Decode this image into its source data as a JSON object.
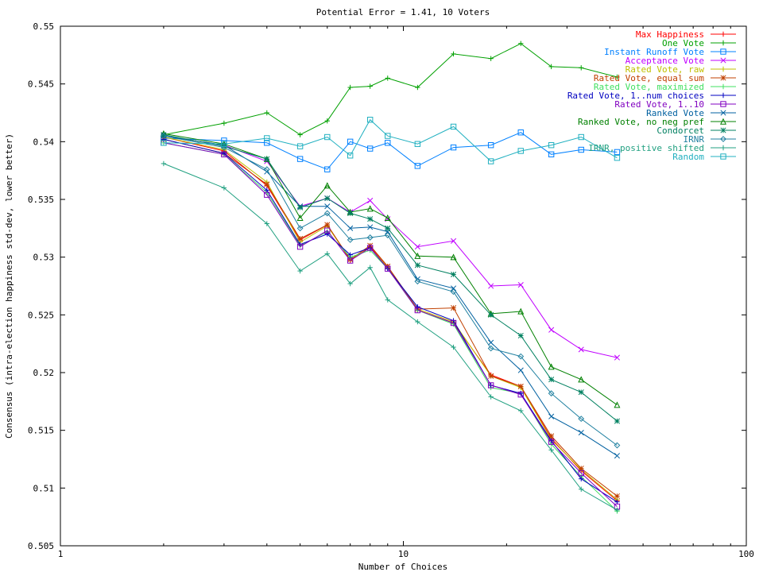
{
  "chart_data": {
    "type": "line",
    "title": "Potential Error = 1.41, 10 Voters",
    "xlabel": "Number of Choices",
    "ylabel": "Consensus (intra-election happiness std-dev, lower better)",
    "x_scale": "log",
    "xlim": [
      1,
      100
    ],
    "ylim": [
      0.505,
      0.55
    ],
    "x_ticks": [
      1,
      10,
      100
    ],
    "x_tick_labels": [
      "1",
      "10",
      "100"
    ],
    "y_ticks": [
      0.505,
      0.51,
      0.515,
      0.52,
      0.525,
      0.53,
      0.535,
      0.54,
      0.545,
      0.55
    ],
    "y_tick_labels": [
      "0.505",
      "0.51",
      "0.515",
      "0.52",
      "0.525",
      "0.53",
      "0.535",
      "0.54",
      "0.545",
      "0.55"
    ],
    "legend_position": "top-right",
    "grid": false,
    "x": [
      2,
      3,
      4,
      5,
      6,
      7,
      8,
      9,
      11,
      14,
      18,
      22,
      27,
      33,
      42
    ],
    "series": [
      {
        "name": "Max Happiness",
        "color": "#ff0000",
        "marker": "plus",
        "values": [
          0.5404,
          0.5392,
          0.5362,
          0.5315,
          0.5328,
          0.5297,
          0.5309,
          0.5292,
          0.5254,
          0.5243,
          0.5198,
          0.5188,
          0.5143,
          0.5115,
          0.5089
        ]
      },
      {
        "name": "One Vote",
        "color": "#00a000",
        "marker": "plus",
        "values": [
          0.5406,
          0.5416,
          0.5425,
          0.5406,
          0.5418,
          0.5447,
          0.5448,
          0.5455,
          0.5447,
          0.5476,
          0.5472,
          0.5485,
          0.5465,
          0.5464,
          0.5456
        ]
      },
      {
        "name": "Instant Runoff Vote",
        "color": "#0080ff",
        "marker": "square",
        "values": [
          0.5403,
          0.5401,
          0.5399,
          0.5385,
          0.5376,
          0.54,
          0.5394,
          0.5399,
          0.5379,
          0.5395,
          0.5397,
          0.5408,
          0.5389,
          0.5393,
          0.5391
        ]
      },
      {
        "name": "Acceptance Vote",
        "color": "#c000ff",
        "marker": "x",
        "values": [
          0.5405,
          0.5397,
          0.5383,
          0.5344,
          0.5351,
          0.5339,
          0.5349,
          0.5333,
          0.5309,
          0.5314,
          0.5275,
          0.5276,
          0.5237,
          0.522,
          0.5213
        ]
      },
      {
        "name": "Rated Vote, raw",
        "color": "#c0c000",
        "marker": "plus",
        "values": [
          0.5404,
          0.5393,
          0.5365,
          0.5313,
          0.5327,
          0.5298,
          0.5308,
          0.5291,
          0.5255,
          0.5244,
          0.5197,
          0.5187,
          0.5142,
          0.5116,
          0.509
        ]
      },
      {
        "name": "Rated Vote, equal sum",
        "color": "#c04000",
        "marker": "star",
        "values": [
          0.5402,
          0.539,
          0.5363,
          0.5316,
          0.5328,
          0.5298,
          0.531,
          0.5292,
          0.5255,
          0.5256,
          0.5197,
          0.5188,
          0.5145,
          0.5117,
          0.5093
        ]
      },
      {
        "name": "Rated Vote, maximized",
        "color": "#40e060",
        "marker": "plus",
        "values": [
          0.5399,
          0.5389,
          0.5356,
          0.531,
          0.5322,
          0.53,
          0.5306,
          0.529,
          0.5254,
          0.5242,
          0.5187,
          0.5182,
          0.5138,
          0.511,
          0.508
        ]
      },
      {
        "name": "Rated Vote, 1..num choices",
        "color": "#0000c0",
        "marker": "plus",
        "values": [
          0.5402,
          0.539,
          0.5358,
          0.5311,
          0.532,
          0.5302,
          0.5308,
          0.529,
          0.5257,
          0.5245,
          0.5189,
          0.5182,
          0.5141,
          0.5108,
          0.5088
        ]
      },
      {
        "name": "Rated Vote, 1..10",
        "color": "#8000c0",
        "marker": "square",
        "values": [
          0.5399,
          0.5389,
          0.5354,
          0.5309,
          0.5323,
          0.5297,
          0.5308,
          0.529,
          0.5254,
          0.5243,
          0.5189,
          0.5181,
          0.514,
          0.5113,
          0.5084
        ]
      },
      {
        "name": "Ranked Vote",
        "color": "#0060a0",
        "marker": "x",
        "values": [
          0.5405,
          0.5397,
          0.5374,
          0.5344,
          0.5344,
          0.5325,
          0.5326,
          0.5322,
          0.5281,
          0.5273,
          0.5226,
          0.5202,
          0.5162,
          0.5148,
          0.5128
        ]
      },
      {
        "name": "Ranked Vote, no neg pref",
        "color": "#008000",
        "marker": "triangle",
        "values": [
          0.5407,
          0.5398,
          0.5385,
          0.5334,
          0.5362,
          0.5339,
          0.5342,
          0.5334,
          0.5301,
          0.53,
          0.5251,
          0.5253,
          0.5205,
          0.5194,
          0.5172
        ]
      },
      {
        "name": "Condorcet",
        "color": "#008060",
        "marker": "star",
        "values": [
          0.5406,
          0.5396,
          0.5385,
          0.5343,
          0.5351,
          0.5338,
          0.5333,
          0.5325,
          0.5293,
          0.5285,
          0.525,
          0.5232,
          0.5194,
          0.5183,
          0.5158
        ]
      },
      {
        "name": "IRNR",
        "color": "#2080a0",
        "marker": "diamond",
        "values": [
          0.5405,
          0.5395,
          0.5376,
          0.5325,
          0.5338,
          0.5315,
          0.5317,
          0.5319,
          0.5279,
          0.527,
          0.5221,
          0.5214,
          0.5182,
          0.516,
          0.5137
        ]
      },
      {
        "name": "IRNR, positive shifted",
        "color": "#20a080",
        "marker": "plus",
        "values": [
          0.5381,
          0.536,
          0.5329,
          0.5288,
          0.5303,
          0.5277,
          0.5291,
          0.5263,
          0.5244,
          0.5222,
          0.5179,
          0.5167,
          0.5133,
          0.5099,
          0.5081
        ]
      },
      {
        "name": "Random",
        "color": "#20b0c0",
        "marker": "square",
        "values": [
          0.5399,
          0.5398,
          0.5403,
          0.5396,
          0.5404,
          0.5388,
          0.5419,
          0.5405,
          0.5398,
          0.5413,
          0.5383,
          0.5392,
          0.5397,
          0.5404,
          0.5386
        ]
      }
    ]
  }
}
